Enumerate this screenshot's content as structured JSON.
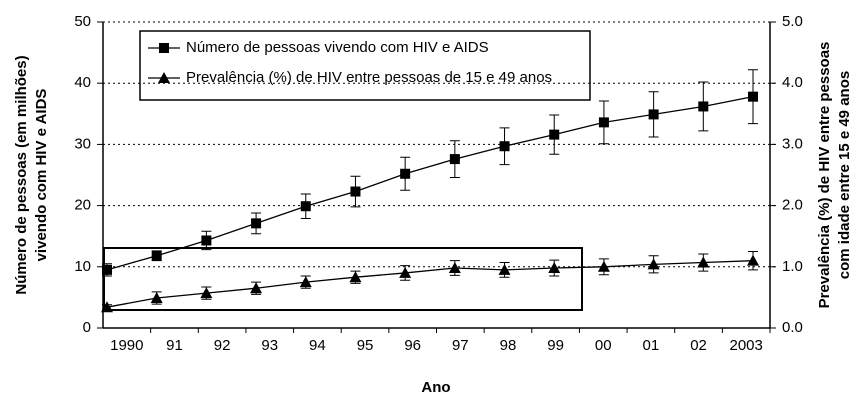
{
  "chart_data": {
    "type": "line",
    "categories": [
      "1990",
      "91",
      "92",
      "93",
      "94",
      "95",
      "96",
      "97",
      "98",
      "99",
      "00",
      "01",
      "02",
      "2003"
    ],
    "xlabel": "Ano",
    "ylabel": [
      "Número de pessoas (em milhões)",
      "vivendo com HIV e AIDS"
    ],
    "y2label": [
      "Prevalência (%) de HIV entre pessoas",
      "com idade entre 15 e 49 anos"
    ],
    "ylim": [
      0,
      50
    ],
    "yticks": [
      0,
      10,
      20,
      30,
      40,
      50
    ],
    "y2lim": [
      0,
      5
    ],
    "y2ticks": [
      {
        "value": 0,
        "label": "0.0"
      },
      {
        "value": 1,
        "label": "1.0"
      },
      {
        "value": 2,
        "label": "2.0"
      },
      {
        "value": 3,
        "label": "3.0"
      },
      {
        "value": 4,
        "label": "4.0"
      },
      {
        "value": 5,
        "label": "5.0"
      }
    ],
    "grid": true,
    "legend": "upper left",
    "series": [
      {
        "name": "Número de pessoas vivendo com HIV e AIDS",
        "color": "#000000",
        "marker": "square",
        "values": [
          9.5,
          11.8,
          14.3,
          17.1,
          19.9,
          22.3,
          25.2,
          27.6,
          29.7,
          31.6,
          33.6,
          34.9,
          36.2,
          37.8
        ],
        "errors": [
          1.0,
          0.8,
          1.5,
          1.7,
          2.0,
          2.5,
          2.7,
          3.0,
          3.0,
          3.2,
          3.5,
          3.7,
          4.0,
          4.4
        ]
      },
      {
        "name": "Prevalência (%) de HIV entre pessoas de 15 e 49 anos",
        "color": "#000000",
        "marker": "triangle",
        "axis": "y2",
        "values": [
          0.34,
          0.49,
          0.57,
          0.65,
          0.75,
          0.83,
          0.9,
          0.98,
          0.95,
          0.98,
          1.0,
          1.04,
          1.07,
          1.1
        ],
        "errors": [
          0.04,
          0.1,
          0.1,
          0.1,
          0.1,
          0.1,
          0.12,
          0.12,
          0.12,
          0.13,
          0.13,
          0.14,
          0.14,
          0.15
        ]
      }
    ]
  }
}
